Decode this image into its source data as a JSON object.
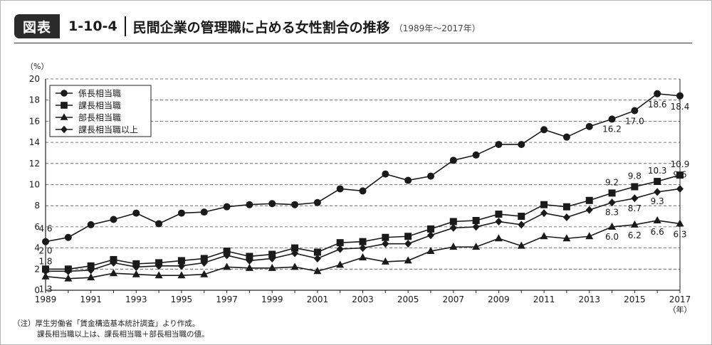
{
  "header": {
    "badge": "図表",
    "figure_number": "1-10-4",
    "title": "民間企業の管理職に占める女性割合の推移",
    "subtitle": "（1989年～2017年）"
  },
  "notes": {
    "line1": "（注）厚生労働省「賃金構造基本統計調査」より作成。",
    "line2": "課長相当職以上は、課長相当職＋部長相当職の値。"
  },
  "chart_data": {
    "type": "line",
    "ylabel": "（%）",
    "xlabel": "（年）",
    "ylim": [
      0,
      20
    ],
    "yticks": [
      0,
      2,
      4,
      6,
      8,
      10,
      12,
      14,
      16,
      18,
      20
    ],
    "x": [
      1989,
      1990,
      1991,
      1992,
      1993,
      1994,
      1995,
      1996,
      1997,
      1998,
      1999,
      2000,
      2001,
      2002,
      2003,
      2004,
      2005,
      2006,
      2007,
      2008,
      2009,
      2010,
      2011,
      2012,
      2013,
      2014,
      2015,
      2016,
      2017
    ],
    "xtick_labels": [
      "1989",
      "1991",
      "1993",
      "1995",
      "1997",
      "1999",
      "2001",
      "2003",
      "2005",
      "2007",
      "2009",
      "2011",
      "2013",
      "2015",
      "2017"
    ],
    "grid": "horizontal dashed",
    "legend_position": "top-left",
    "series": [
      {
        "name": "係長相当職",
        "marker": "circle",
        "values": [
          4.6,
          5.0,
          6.2,
          6.7,
          7.3,
          6.3,
          7.3,
          7.4,
          7.9,
          8.1,
          8.2,
          8.1,
          8.3,
          9.6,
          9.4,
          11.0,
          10.4,
          10.8,
          12.3,
          12.8,
          13.8,
          13.8,
          15.2,
          14.5,
          15.5,
          16.2,
          17.0,
          18.6,
          18.4
        ],
        "labels": {
          "0": "4.6",
          "25": "16.2",
          "26": "17.0",
          "27": "18.6",
          "28": "18.4"
        }
      },
      {
        "name": "課長相当職",
        "marker": "square",
        "values": [
          2.0,
          2.0,
          2.3,
          2.9,
          2.5,
          2.6,
          2.8,
          3.0,
          3.7,
          3.2,
          3.4,
          4.0,
          3.6,
          4.5,
          4.6,
          5.0,
          5.1,
          5.8,
          6.5,
          6.6,
          7.2,
          7.0,
          8.1,
          7.9,
          8.5,
          9.2,
          9.8,
          10.3,
          10.9
        ],
        "labels": {
          "0": "2.0",
          "25": "9.2",
          "26": "9.8",
          "27": "10.3",
          "28": "10.9"
        }
      },
      {
        "name": "部長相当職",
        "marker": "triangle",
        "values": [
          1.3,
          1.1,
          1.2,
          1.6,
          1.5,
          1.4,
          1.4,
          1.5,
          2.2,
          2.1,
          2.1,
          2.2,
          1.8,
          2.4,
          3.1,
          2.7,
          2.8,
          3.7,
          4.1,
          4.1,
          4.9,
          4.2,
          5.1,
          4.9,
          5.1,
          6.0,
          6.2,
          6.6,
          6.3
        ],
        "labels": {
          "0": "1.3",
          "25": "6.0",
          "26": "6.2",
          "27": "6.6",
          "28": "6.3"
        }
      },
      {
        "name": "課長相当職以上",
        "marker": "diamond",
        "values": [
          1.8,
          1.8,
          1.9,
          2.6,
          2.2,
          2.3,
          2.3,
          2.6,
          3.3,
          2.8,
          3.0,
          3.5,
          3.0,
          3.9,
          4.0,
          4.4,
          4.4,
          5.2,
          5.9,
          6.0,
          6.5,
          6.2,
          7.3,
          6.9,
          7.6,
          8.3,
          8.7,
          9.3,
          9.6
        ],
        "labels": {
          "0": "1.8",
          "25": "8.3",
          "26": "8.7",
          "27": "9.3",
          "28": "9.6"
        }
      }
    ]
  }
}
